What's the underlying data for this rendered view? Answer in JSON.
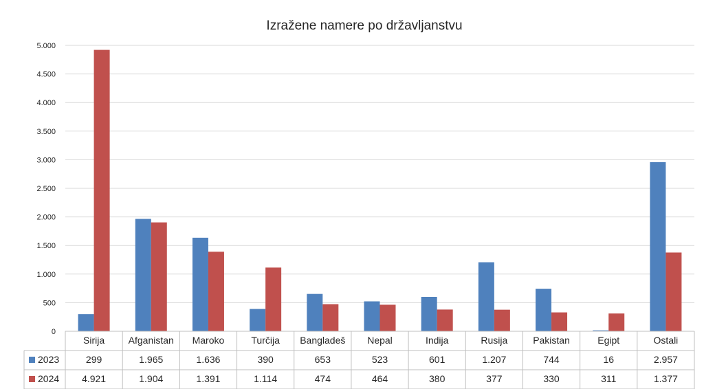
{
  "chart_data": {
    "type": "bar",
    "title": "Izražene namere po državljanstvu",
    "xlabel": "",
    "ylabel": "",
    "categories": [
      "Sirija",
      "Afganistan",
      "Maroko",
      "Turčija",
      "Bangladeš",
      "Nepal",
      "Indija",
      "Rusija",
      "Pakistan",
      "Egipt",
      "Ostali"
    ],
    "series": [
      {
        "name": "2023",
        "color": "#4F81BD",
        "values": [
          299,
          1965,
          1636,
          390,
          653,
          523,
          601,
          1207,
          744,
          16,
          2957
        ],
        "labels": [
          "299",
          "1.965",
          "1.636",
          "390",
          "653",
          "523",
          "601",
          "1.207",
          "744",
          "16",
          "2.957"
        ]
      },
      {
        "name": "2024",
        "color": "#C0504D",
        "values": [
          4921,
          1904,
          1391,
          1114,
          474,
          464,
          380,
          377,
          330,
          311,
          1377
        ],
        "labels": [
          "4.921",
          "1.904",
          "1.391",
          "1.114",
          "474",
          "464",
          "380",
          "377",
          "330",
          "311",
          "1.377"
        ]
      }
    ],
    "ylim": [
      0,
      5000
    ],
    "yticks": [
      0,
      500,
      1000,
      1500,
      2000,
      2500,
      3000,
      3500,
      4000,
      4500,
      5000
    ],
    "ytick_labels": [
      "0",
      "500",
      "1.000",
      "1.500",
      "2.000",
      "2.500",
      "3.000",
      "3.500",
      "4.000",
      "4.500",
      "5.000"
    ],
    "grid": true,
    "legend": "data-table-left"
  }
}
